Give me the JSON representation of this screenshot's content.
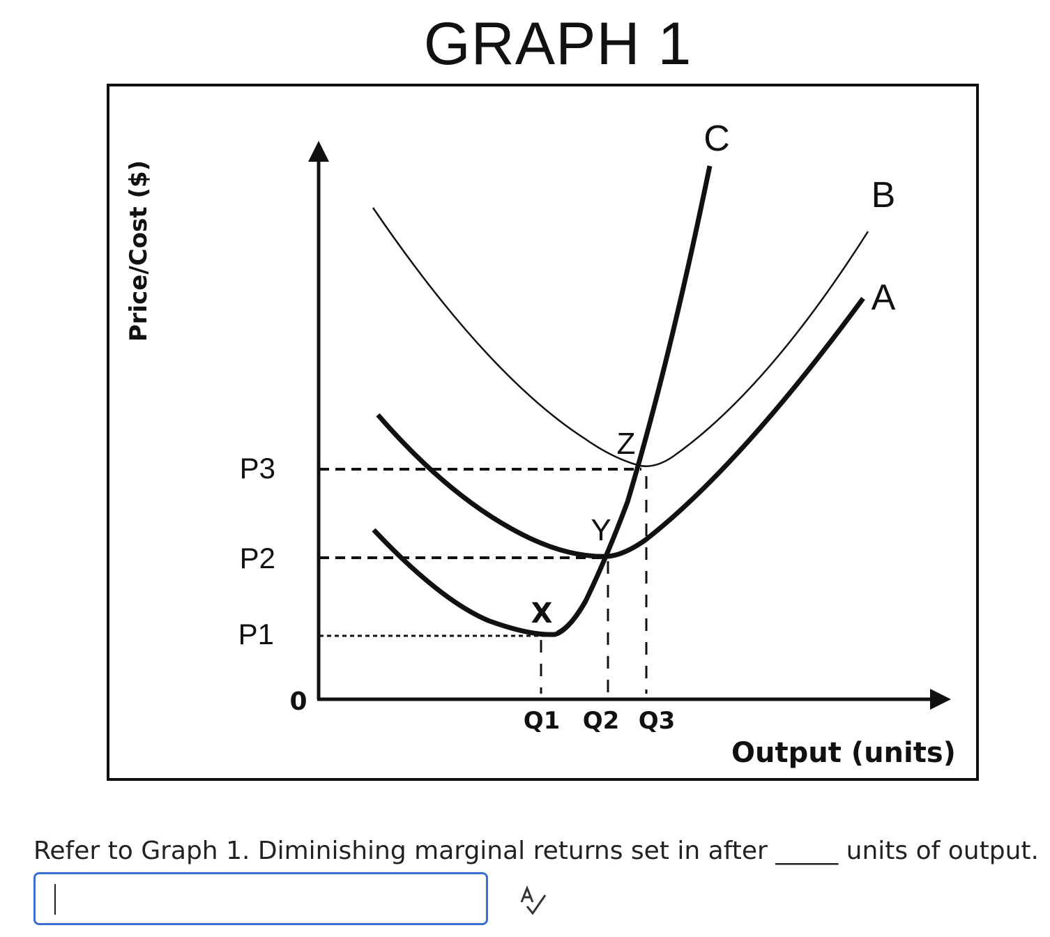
{
  "chart_data": {
    "type": "line",
    "title": "GRAPH 1",
    "ylabel": "Price/Cost ($)",
    "xlabel": "Output (units)",
    "origin_label": "0",
    "y_ticks": [
      "P1",
      "P2",
      "P3"
    ],
    "x_ticks": [
      "Q1",
      "Q2",
      "Q3"
    ],
    "series": [
      {
        "name": "A",
        "style": "thick"
      },
      {
        "name": "B",
        "style": "thin"
      },
      {
        "name": "C",
        "style": "thick"
      }
    ],
    "points": [
      {
        "label": "X",
        "x": "Q1",
        "y": "P1"
      },
      {
        "label": "Y",
        "x": "Q2",
        "y": "P2"
      },
      {
        "label": "Z",
        "x": "Q3",
        "y": "P3"
      }
    ]
  },
  "question": {
    "text": "Refer to Graph 1.  Diminishing marginal returns set in after _____ units of output."
  },
  "answer": {
    "value": "",
    "spellcheck_icon": "spell-check-icon"
  }
}
